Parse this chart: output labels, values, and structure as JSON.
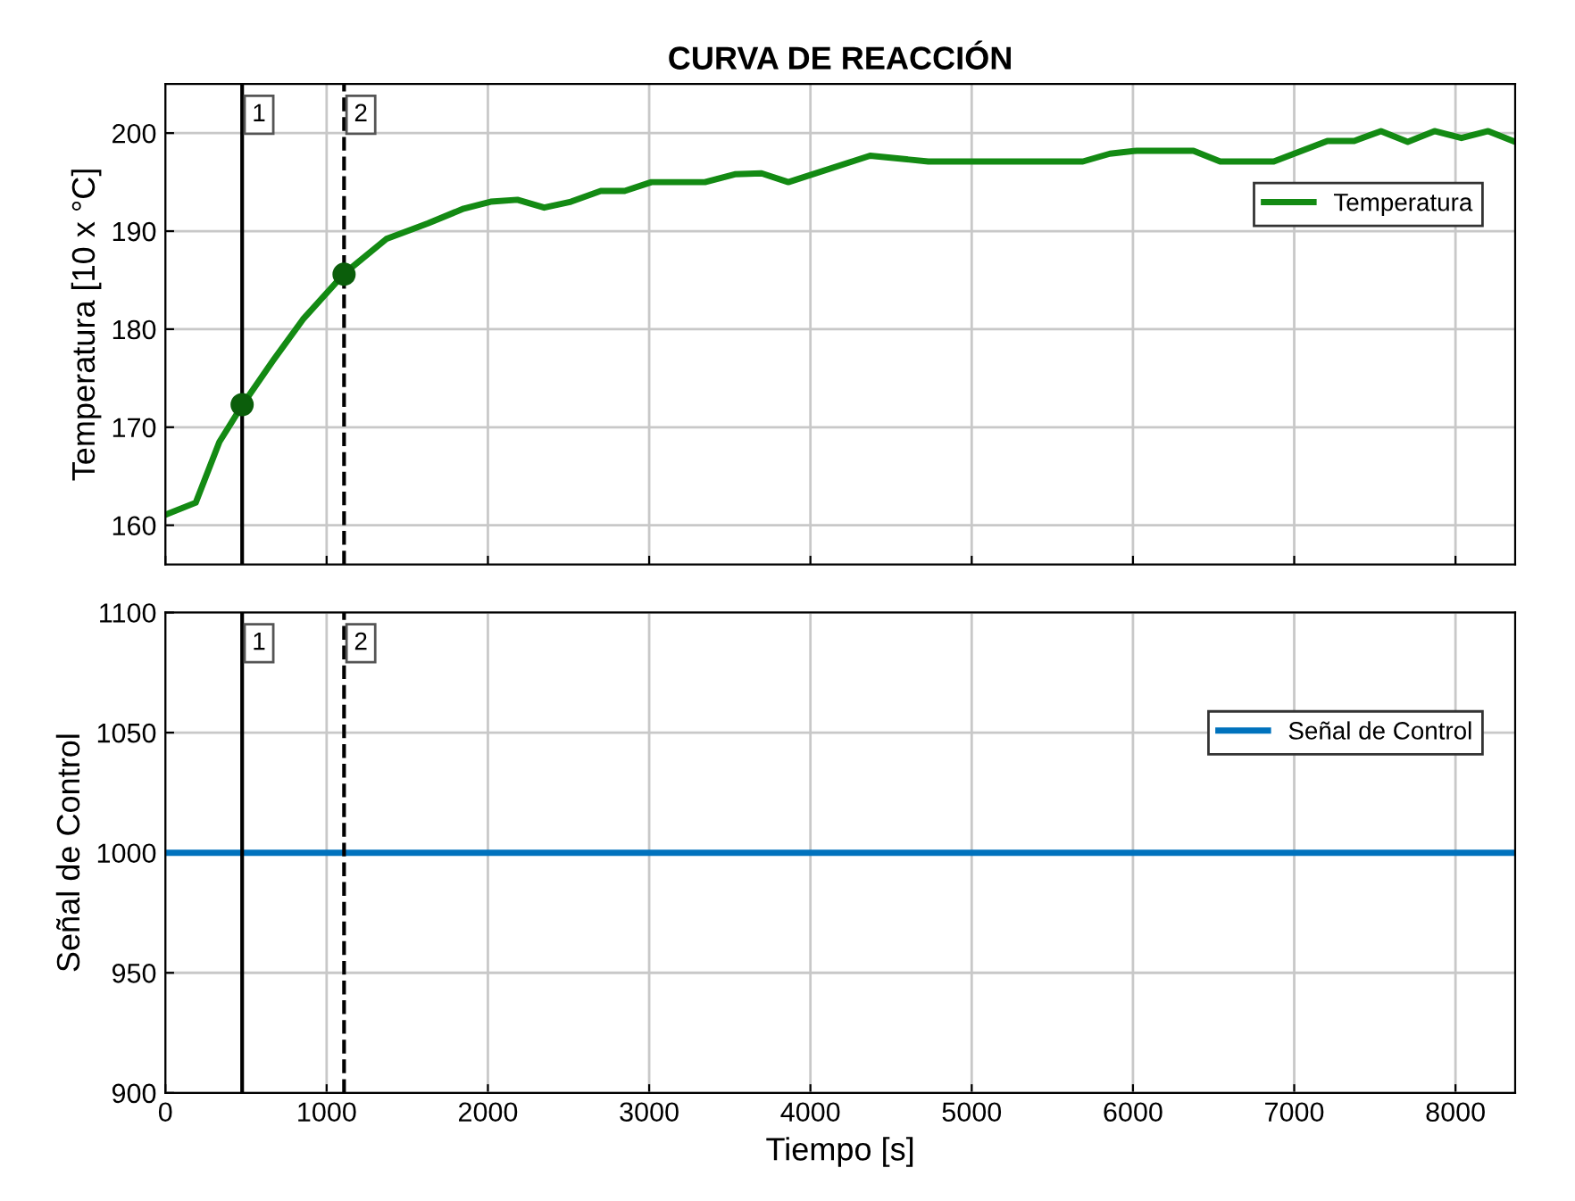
{
  "chart_data": [
    {
      "type": "line",
      "title": "CURVA DE REACCIÓN",
      "ylabel": "Temperatura [10 x °C]",
      "xlim": [
        0,
        8370
      ],
      "xticks": [
        0,
        1000,
        2000,
        3000,
        4000,
        5000,
        6000,
        7000,
        8000
      ],
      "ylim": [
        156,
        205
      ],
      "yticks": [
        160,
        170,
        180,
        190,
        200
      ],
      "grid": true,
      "legend": "upper right",
      "tick_labels": "y",
      "series": [
        {
          "name": "Temperatura",
          "color": "#138a13",
          "x": [
            4,
            188,
            335,
            483,
            668,
            853,
            1111,
            1370,
            1629,
            1850,
            2017,
            2183,
            2349,
            2515,
            2700,
            2848,
            3014,
            3346,
            3531,
            3697,
            3863,
            4370,
            4731,
            5689,
            5857,
            6024,
            6375,
            6541,
            6873,
            7206,
            7372,
            7538,
            7704,
            7870,
            8037,
            8203,
            8370
          ],
          "values": [
            161.1,
            162.3,
            168.5,
            172.4,
            176.8,
            181.0,
            185.7,
            189.2,
            190.8,
            192.3,
            193.0,
            193.2,
            192.4,
            193.0,
            194.1,
            194.1,
            195.0,
            195.0,
            195.8,
            195.9,
            195.0,
            197.7,
            197.1,
            197.1,
            197.9,
            198.2,
            198.2,
            197.1,
            197.1,
            199.2,
            199.2,
            200.2,
            199.1,
            200.2,
            199.5,
            200.2,
            199.1
          ]
        },
        {
          "type": "scatter",
          "color": "#0b5e0b",
          "marker": "circle",
          "x": [
            476,
            1108
          ],
          "values": [
            172.3,
            185.6
          ]
        }
      ],
      "ref_lines": [
        {
          "axis": "x",
          "value": 476,
          "color": "#000000",
          "line_style": "solid"
        },
        {
          "axis": "x",
          "value": 1108,
          "color": "#000000",
          "line_style": "dashed"
        }
      ],
      "annotations": [
        "1",
        "2"
      ]
    },
    {
      "type": "step",
      "xlabel": "Tiempo [s]",
      "ylabel": "Señal de Control",
      "xlim": [
        0,
        8370
      ],
      "xticks": [
        0,
        1000,
        2000,
        3000,
        4000,
        5000,
        6000,
        7000,
        8000
      ],
      "ylim": [
        900,
        1100
      ],
      "yticks": [
        900,
        950,
        1000,
        1050,
        1100
      ],
      "grid": true,
      "legend": "upper right",
      "series": [
        {
          "name": "Señal de Control",
          "color": "#0072bd",
          "x": [
            0,
            8370
          ],
          "values": [
            1000,
            1000
          ]
        }
      ],
      "ref_lines": [
        {
          "axis": "x",
          "value": 476,
          "color": "#000000",
          "line_style": "solid"
        },
        {
          "axis": "x",
          "value": 1108,
          "color": "#000000",
          "line_style": "dashed"
        }
      ],
      "annotations": [
        "1",
        "2"
      ]
    }
  ]
}
